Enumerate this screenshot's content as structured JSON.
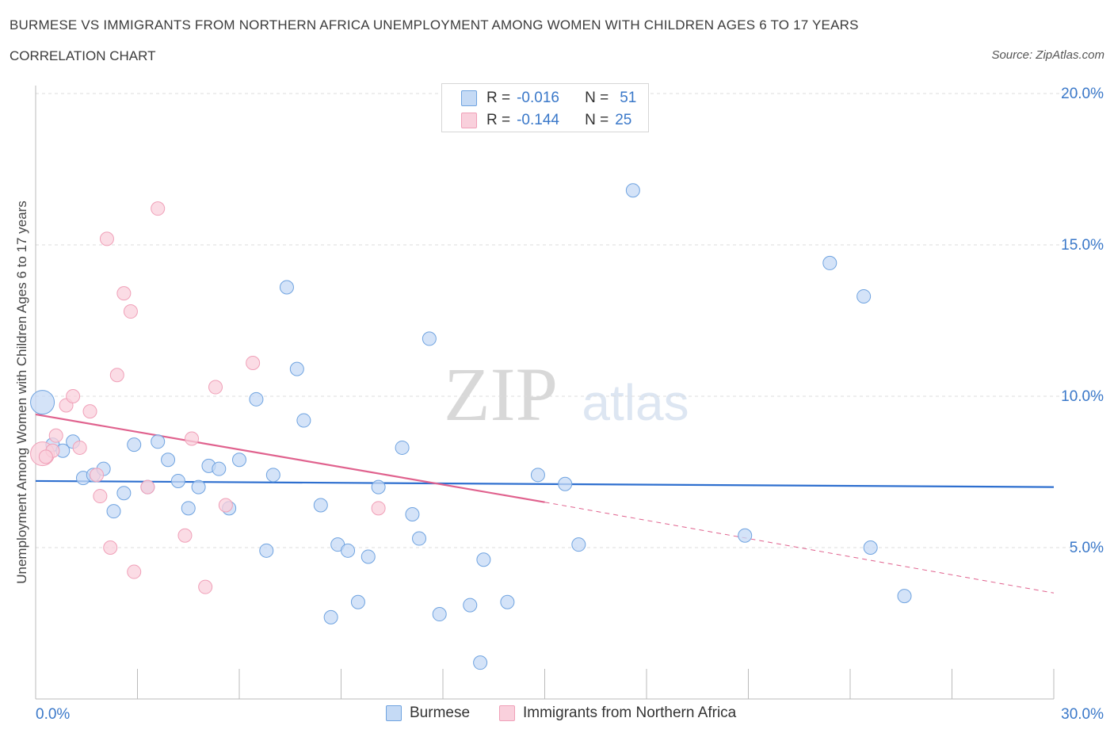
{
  "header": {
    "title": "BURMESE VS IMMIGRANTS FROM NORTHERN AFRICA UNEMPLOYMENT AMONG WOMEN WITH CHILDREN AGES 6 TO 17 YEARS",
    "subtitle": "CORRELATION CHART",
    "source": "Source: ZipAtlas.com"
  },
  "watermark": {
    "zip": "ZIP",
    "atlas": "atlas"
  },
  "legend": {
    "r_label": "R =",
    "n_label": "N =",
    "series": [
      {
        "r": "-0.016",
        "n": "51"
      },
      {
        "r": "-0.144",
        "n": "25"
      }
    ]
  },
  "chart_data": {
    "type": "scatter",
    "ylabel": "Unemployment Among Women with Children Ages 6 to 17 years",
    "xlabel": "",
    "xlim": [
      0,
      30
    ],
    "ylim": [
      0,
      20
    ],
    "x_tick_labels": [
      "0.0%",
      "30.0%"
    ],
    "y_tick_labels": [
      "5.0%",
      "10.0%",
      "15.0%",
      "20.0%"
    ],
    "y_ticks": [
      5,
      10,
      15,
      20
    ],
    "grid": true,
    "legend_position": "top-center",
    "series": [
      {
        "name": "Burmese",
        "color": "#6fa3e0",
        "fill": "#c5daf5",
        "line_color": "#2e6fcf",
        "trend": {
          "x": [
            0,
            30
          ],
          "y": [
            7.2,
            7.0
          ]
        },
        "points": [
          {
            "x": 0.2,
            "y": 9.8,
            "big": true
          },
          {
            "x": 0.5,
            "y": 8.4
          },
          {
            "x": 0.8,
            "y": 8.2
          },
          {
            "x": 1.1,
            "y": 8.5
          },
          {
            "x": 1.4,
            "y": 7.3
          },
          {
            "x": 1.7,
            "y": 7.4
          },
          {
            "x": 2.0,
            "y": 7.6
          },
          {
            "x": 2.3,
            "y": 6.2
          },
          {
            "x": 2.6,
            "y": 6.8
          },
          {
            "x": 2.9,
            "y": 8.4
          },
          {
            "x": 3.3,
            "y": 7.0
          },
          {
            "x": 3.6,
            "y": 8.5
          },
          {
            "x": 3.9,
            "y": 7.9
          },
          {
            "x": 4.2,
            "y": 7.2
          },
          {
            "x": 4.5,
            "y": 6.3
          },
          {
            "x": 4.8,
            "y": 7.0
          },
          {
            "x": 5.1,
            "y": 7.7
          },
          {
            "x": 5.4,
            "y": 7.6
          },
          {
            "x": 5.7,
            "y": 6.3
          },
          {
            "x": 6.0,
            "y": 7.9
          },
          {
            "x": 6.5,
            "y": 9.9
          },
          {
            "x": 6.8,
            "y": 4.9
          },
          {
            "x": 7.0,
            "y": 7.4
          },
          {
            "x": 7.4,
            "y": 13.6
          },
          {
            "x": 7.7,
            "y": 10.9
          },
          {
            "x": 7.9,
            "y": 9.2
          },
          {
            "x": 8.4,
            "y": 6.4
          },
          {
            "x": 8.7,
            "y": 2.7
          },
          {
            "x": 8.9,
            "y": 5.1
          },
          {
            "x": 9.2,
            "y": 4.9
          },
          {
            "x": 9.5,
            "y": 3.2
          },
          {
            "x": 9.8,
            "y": 4.7
          },
          {
            "x": 10.1,
            "y": 7.0
          },
          {
            "x": 10.8,
            "y": 8.3
          },
          {
            "x": 11.1,
            "y": 6.1
          },
          {
            "x": 11.3,
            "y": 5.3
          },
          {
            "x": 11.6,
            "y": 11.9
          },
          {
            "x": 11.9,
            "y": 2.8
          },
          {
            "x": 12.8,
            "y": 3.1
          },
          {
            "x": 13.1,
            "y": 1.2
          },
          {
            "x": 13.2,
            "y": 4.6
          },
          {
            "x": 13.9,
            "y": 3.2
          },
          {
            "x": 14.8,
            "y": 7.4
          },
          {
            "x": 15.6,
            "y": 7.1
          },
          {
            "x": 16.0,
            "y": 5.1
          },
          {
            "x": 17.6,
            "y": 16.8
          },
          {
            "x": 20.9,
            "y": 5.4
          },
          {
            "x": 23.4,
            "y": 14.4
          },
          {
            "x": 24.4,
            "y": 13.3
          },
          {
            "x": 24.6,
            "y": 5.0
          },
          {
            "x": 25.6,
            "y": 3.4
          }
        ]
      },
      {
        "name": "Immigrants from Northern Africa",
        "color": "#f0a0b8",
        "fill": "#f9d0dc",
        "line_color": "#e0628e",
        "trend": {
          "x": [
            0,
            15
          ],
          "y": [
            9.4,
            6.5
          ]
        },
        "trend_dashed": {
          "x": [
            15,
            30
          ],
          "y": [
            6.5,
            3.5
          ]
        },
        "points": [
          {
            "x": 0.2,
            "y": 8.1,
            "big": true
          },
          {
            "x": 0.5,
            "y": 8.2
          },
          {
            "x": 0.6,
            "y": 8.7
          },
          {
            "x": 0.9,
            "y": 9.7
          },
          {
            "x": 1.1,
            "y": 10.0
          },
          {
            "x": 1.3,
            "y": 8.3
          },
          {
            "x": 1.6,
            "y": 9.5
          },
          {
            "x": 1.8,
            "y": 7.4
          },
          {
            "x": 1.9,
            "y": 6.7
          },
          {
            "x": 2.1,
            "y": 15.2
          },
          {
            "x": 2.2,
            "y": 5.0
          },
          {
            "x": 2.4,
            "y": 10.7
          },
          {
            "x": 2.6,
            "y": 13.4
          },
          {
            "x": 2.8,
            "y": 12.8
          },
          {
            "x": 2.9,
            "y": 4.2
          },
          {
            "x": 3.3,
            "y": 7.0
          },
          {
            "x": 3.6,
            "y": 16.2
          },
          {
            "x": 4.4,
            "y": 5.4
          },
          {
            "x": 4.6,
            "y": 8.6
          },
          {
            "x": 5.0,
            "y": 3.7
          },
          {
            "x": 5.3,
            "y": 10.3
          },
          {
            "x": 5.6,
            "y": 6.4
          },
          {
            "x": 6.4,
            "y": 11.1
          },
          {
            "x": 10.1,
            "y": 6.3
          },
          {
            "x": 0.3,
            "y": 8.0
          }
        ]
      }
    ]
  }
}
